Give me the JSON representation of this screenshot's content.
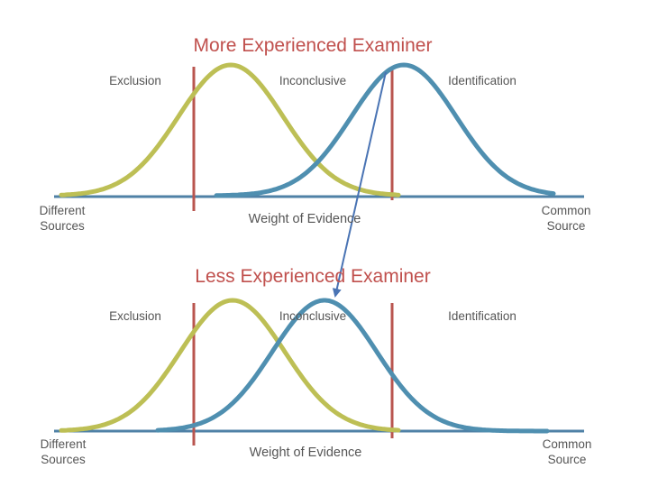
{
  "colors": {
    "title": "#c0504d",
    "axis": "#4f81a6",
    "threshold": "#b9554f",
    "different_curve": "#bdbf55",
    "common_curve": "#4f8fb0",
    "arrow": "#4a74b4",
    "label": "#555555"
  },
  "panels": [
    {
      "title": "More Experienced Examiner",
      "regions": [
        "Exclusion",
        "Inconclusive",
        "Identification"
      ],
      "left_end": {
        "line1": "Different",
        "line2": "Sources"
      },
      "right_end": {
        "line1": "Common",
        "line2": "Source"
      },
      "axis_label": "Weight of Evidence"
    },
    {
      "title": "Less Experienced Examiner",
      "regions": [
        "Exclusion",
        "Inconclusive",
        "Identification"
      ],
      "left_end": {
        "line1": "Different",
        "line2": "Sources"
      },
      "right_end": {
        "line1": "Common",
        "line2": "Source"
      },
      "axis_label": "Weight of Evidence"
    }
  ]
}
